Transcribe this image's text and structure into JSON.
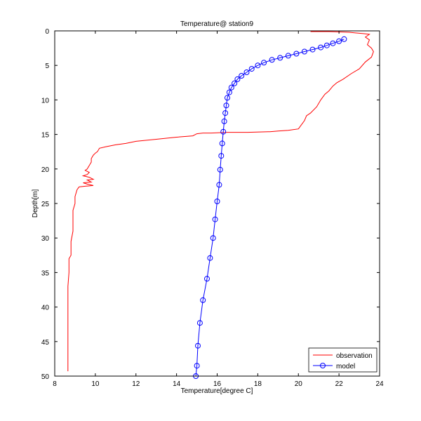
{
  "chart_data": {
    "type": "line",
    "title": "Temperature@ station9",
    "xlabel": "Temperature[degree C]",
    "ylabel": "Depth[m]",
    "xlim": [
      8,
      24
    ],
    "ylim": [
      0,
      50
    ],
    "y_reversed": true,
    "grid": false,
    "legend_position": "bottom-right",
    "xticks": [
      8,
      10,
      12,
      14,
      16,
      18,
      20,
      22,
      24
    ],
    "yticks": [
      0,
      5,
      10,
      15,
      20,
      25,
      30,
      35,
      40,
      45,
      50
    ],
    "series": [
      {
        "name": "observation",
        "color": "#ff0000",
        "marker": "none",
        "x": [
          20.6,
          21.5,
          22.5,
          23.2,
          23.5,
          23.3,
          23.5,
          23.4,
          23.6,
          23.7,
          23.6,
          23.3,
          23.0,
          22.6,
          22.2,
          21.9,
          21.7,
          21.5,
          21.3,
          21.1,
          20.9,
          20.6,
          20.4,
          20.3,
          20.1,
          20.0,
          19.5,
          19.0,
          18.6,
          17.5,
          16.5,
          15.7,
          15.3,
          15.0,
          14.8,
          14.0,
          13.0,
          12.0,
          11.5,
          11.0,
          10.5,
          10.2,
          10.1,
          10.0,
          9.9,
          9.8,
          9.8,
          9.7,
          9.6,
          9.5,
          9.7,
          9.6,
          9.4,
          9.7,
          9.9,
          9.6,
          9.8,
          9.4,
          9.6,
          9.9,
          9.5,
          9.2,
          9.1,
          9.0,
          9.0,
          8.9,
          8.9,
          8.9,
          8.8,
          8.8,
          8.8,
          8.8,
          8.7,
          8.7,
          8.7,
          8.65,
          8.65,
          8.65,
          8.65,
          8.65,
          8.65
        ],
        "y": [
          0.1,
          0.1,
          0.2,
          0.4,
          0.5,
          0.9,
          1.3,
          2.0,
          2.5,
          3.0,
          3.8,
          4.5,
          5.5,
          6.2,
          7.0,
          7.5,
          8.0,
          8.7,
          9.2,
          10.0,
          11.0,
          11.9,
          12.3,
          13.0,
          13.8,
          14.2,
          14.4,
          14.5,
          14.6,
          14.7,
          14.7,
          14.8,
          14.8,
          14.9,
          15.2,
          15.4,
          15.7,
          16.0,
          16.3,
          16.5,
          16.8,
          17.0,
          17.5,
          17.7,
          18.0,
          18.5,
          19.0,
          19.5,
          20.0,
          20.2,
          20.5,
          20.8,
          21.0,
          21.2,
          21.5,
          21.6,
          21.9,
          22.0,
          22.2,
          22.4,
          22.5,
          22.6,
          23.0,
          24.0,
          25.0,
          26.0,
          27.5,
          29.0,
          30.5,
          31.5,
          32.0,
          32.5,
          33.0,
          34.0,
          35.0,
          37.0,
          40.0,
          43.0,
          46.0,
          48.0,
          49.3
        ]
      },
      {
        "name": "model",
        "color": "#0000ff",
        "marker": "circle",
        "x": [
          22.25,
          22.0,
          21.7,
          21.4,
          21.1,
          20.7,
          20.3,
          19.9,
          19.5,
          19.1,
          18.7,
          18.3,
          18.0,
          17.7,
          17.45,
          17.2,
          17.0,
          16.85,
          16.7,
          16.6,
          16.5,
          16.45,
          16.4,
          16.35,
          16.3,
          16.25,
          16.2,
          16.15,
          16.1,
          16.0,
          15.9,
          15.8,
          15.65,
          15.5,
          15.3,
          15.15,
          15.05,
          15.0,
          14.95
        ],
        "y": [
          1.2,
          1.5,
          1.8,
          2.1,
          2.4,
          2.7,
          3.0,
          3.3,
          3.6,
          3.9,
          4.2,
          4.6,
          5.0,
          5.5,
          6.0,
          6.5,
          7.0,
          7.6,
          8.2,
          8.9,
          9.7,
          10.8,
          11.9,
          13.1,
          14.6,
          16.3,
          18.1,
          20.1,
          22.3,
          24.7,
          27.3,
          30.0,
          32.9,
          35.9,
          39.0,
          42.3,
          45.6,
          48.5,
          50.0
        ]
      }
    ]
  }
}
